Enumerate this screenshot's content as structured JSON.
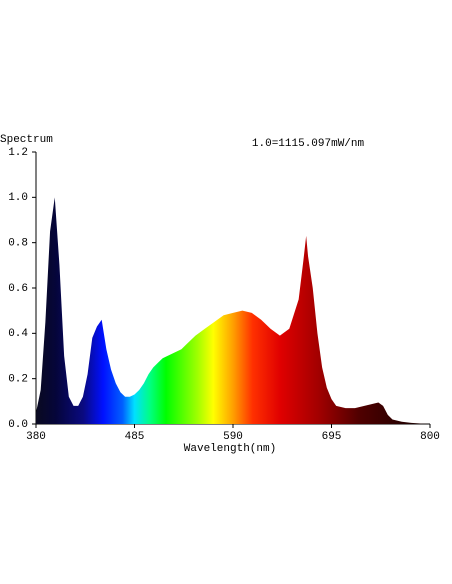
{
  "chart_data": {
    "type": "area",
    "title": "Spectrum",
    "annotation": "1.0=1115.097mW/nm",
    "x_label": "Wavelength(nm)",
    "x": [
      380,
      385,
      390,
      395,
      400,
      405,
      410,
      415,
      420,
      425,
      430,
      435,
      440,
      445,
      450,
      455,
      460,
      465,
      470,
      475,
      480,
      485,
      490,
      495,
      500,
      505,
      510,
      515,
      520,
      525,
      530,
      535,
      540,
      550,
      560,
      570,
      580,
      590,
      600,
      610,
      620,
      630,
      640,
      650,
      660,
      665,
      668,
      670,
      675,
      680,
      685,
      690,
      695,
      700,
      710,
      720,
      730,
      740,
      745,
      750,
      755,
      760,
      770,
      780,
      790,
      800
    ],
    "values": [
      0.05,
      0.15,
      0.45,
      0.85,
      1.0,
      0.7,
      0.3,
      0.12,
      0.08,
      0.08,
      0.12,
      0.22,
      0.38,
      0.43,
      0.46,
      0.33,
      0.24,
      0.18,
      0.14,
      0.12,
      0.12,
      0.13,
      0.15,
      0.18,
      0.22,
      0.25,
      0.27,
      0.29,
      0.3,
      0.31,
      0.32,
      0.33,
      0.35,
      0.39,
      0.42,
      0.45,
      0.48,
      0.49,
      0.5,
      0.49,
      0.46,
      0.42,
      0.39,
      0.42,
      0.55,
      0.72,
      0.83,
      0.74,
      0.6,
      0.4,
      0.25,
      0.16,
      0.11,
      0.08,
      0.07,
      0.07,
      0.08,
      0.09,
      0.095,
      0.08,
      0.04,
      0.02,
      0.01,
      0.005,
      0.002,
      0
    ],
    "xlim": [
      380,
      800
    ],
    "xticks": [
      380,
      485,
      590,
      695,
      800
    ],
    "ylim": [
      0,
      1.2
    ],
    "yticks": [
      {
        "value": 0,
        "label": "0.0"
      },
      0.2,
      0.4,
      0.6,
      0.8,
      {
        "value": 1,
        "label": "1.0"
      },
      1.2
    ],
    "grid": false
  }
}
